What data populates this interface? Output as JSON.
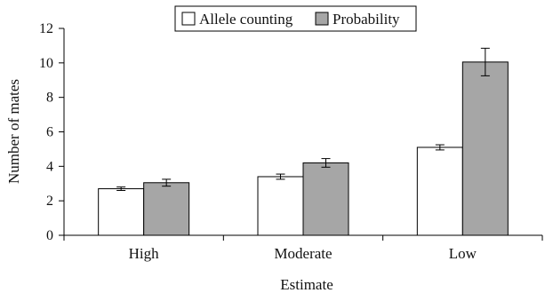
{
  "chart_data": {
    "type": "bar",
    "categories": [
      "High",
      "Moderate",
      "Low"
    ],
    "series": [
      {
        "name": "Allele counting",
        "values": [
          2.7,
          3.4,
          5.1
        ],
        "errors": [
          0.1,
          0.15,
          0.15
        ],
        "color": "#ffffff"
      },
      {
        "name": "Probability",
        "values": [
          3.05,
          4.2,
          10.05
        ],
        "errors": [
          0.2,
          0.25,
          0.8
        ],
        "color": "#a6a6a6"
      }
    ],
    "title": "",
    "xlabel": "Estimate",
    "ylabel": "Number of mates",
    "ylim": [
      0,
      12
    ],
    "yticks": [
      0,
      2,
      4,
      6,
      8,
      10,
      12
    ],
    "grid": false,
    "legend_position": "top-center"
  }
}
